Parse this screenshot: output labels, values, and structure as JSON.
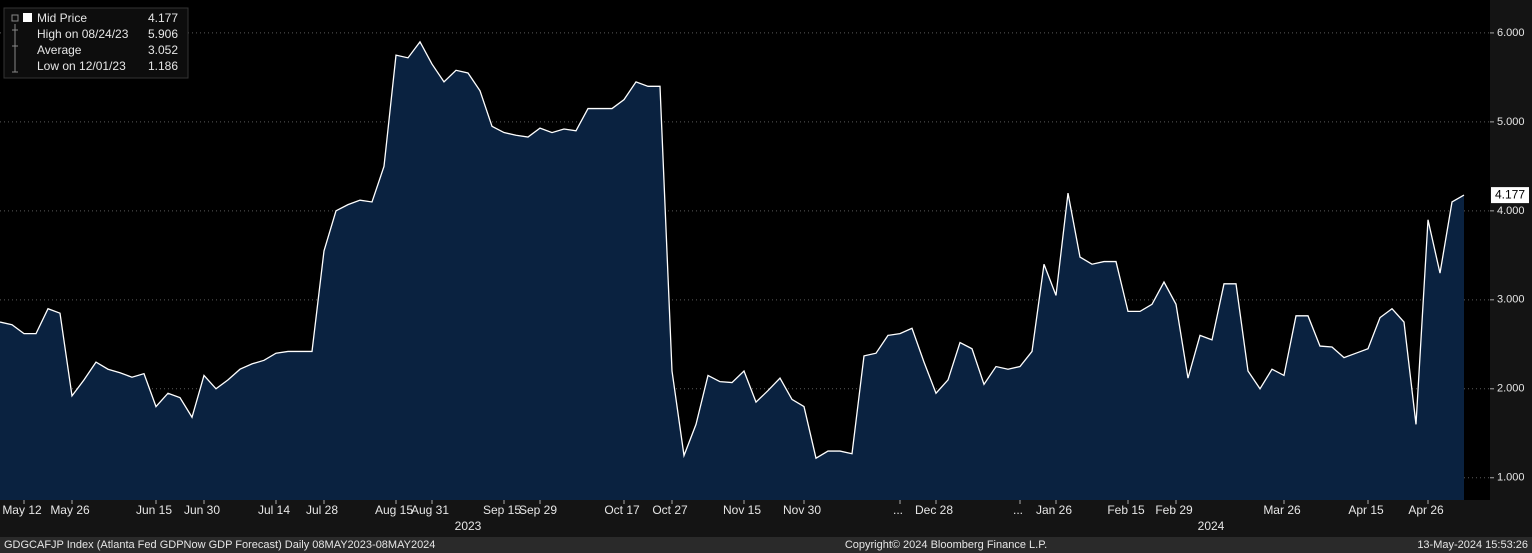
{
  "chart_data": {
    "type": "area",
    "series": [
      {
        "name": "Mid Price",
        "color": "#ffffff",
        "fill": "#0a2240",
        "values": [
          2.75,
          2.72,
          2.62,
          2.62,
          2.9,
          2.85,
          1.92,
          2.1,
          2.3,
          2.22,
          2.18,
          2.13,
          2.17,
          1.8,
          1.95,
          1.9,
          1.68,
          2.15,
          2.0,
          2.1,
          2.22,
          2.28,
          2.32,
          2.4,
          2.42,
          2.42,
          2.42,
          3.55,
          4.0,
          4.07,
          4.12,
          4.1,
          4.5,
          5.75,
          5.72,
          5.9,
          5.65,
          5.45,
          5.58,
          5.55,
          5.35,
          4.95,
          4.88,
          4.85,
          4.83,
          4.93,
          4.88,
          4.92,
          4.9,
          5.15,
          5.15,
          5.15,
          5.25,
          5.45,
          5.4,
          5.4,
          2.2,
          1.25,
          1.6,
          2.15,
          2.08,
          2.07,
          2.2,
          1.85,
          1.98,
          2.12,
          1.88,
          1.8,
          1.22,
          1.3,
          1.3,
          1.27,
          2.37,
          2.4,
          2.6,
          2.62,
          2.68,
          2.3,
          1.95,
          2.1,
          2.52,
          2.45,
          2.05,
          2.25,
          2.22,
          2.25,
          2.42,
          3.4,
          3.05,
          4.2,
          3.48,
          3.4,
          3.43,
          3.43,
          2.87,
          2.87,
          2.95,
          3.2,
          2.95,
          2.12,
          2.6,
          2.55,
          3.18,
          3.18,
          2.2,
          2.0,
          2.22,
          2.15,
          2.82,
          2.82,
          2.48,
          2.47,
          2.35,
          2.4,
          2.45,
          2.8,
          2.9,
          2.75,
          1.6,
          3.9,
          3.3,
          4.1,
          4.177
        ]
      }
    ],
    "categories": [
      null,
      null,
      "May 12",
      null,
      null,
      null,
      "May 26",
      null,
      null,
      null,
      null,
      null,
      null,
      "Jun 15",
      null,
      null,
      null,
      "Jun 30",
      null,
      null,
      null,
      null,
      null,
      "Jul 14",
      null,
      null,
      null,
      "Jul 28",
      null,
      null,
      null,
      null,
      null,
      "Aug 15",
      null,
      null,
      "Aug 31",
      null,
      null,
      null,
      null,
      null,
      "Sep 15",
      null,
      null,
      "Sep 29",
      null,
      null,
      null,
      null,
      null,
      null,
      "Oct 17",
      null,
      null,
      null,
      "Oct 27",
      null,
      null,
      null,
      null,
      null,
      "Nov 15",
      null,
      null,
      null,
      null,
      "Nov 30",
      null,
      null,
      null,
      null,
      null,
      null,
      null,
      "...",
      null,
      null,
      "Dec 28",
      null,
      null,
      null,
      null,
      null,
      null,
      "...",
      null,
      null,
      "Jan 26",
      null,
      null,
      null,
      null,
      null,
      "Feb 15",
      null,
      null,
      null,
      "Feb 29",
      null,
      null,
      null,
      null,
      null,
      null,
      null,
      null,
      "Mar 26",
      null,
      null,
      null,
      null,
      null,
      null,
      "Apr 15",
      null,
      null,
      null,
      null,
      "Apr 26",
      null,
      null,
      null
    ],
    "years": [
      "2023",
      "2024"
    ],
    "ylim": [
      0.75,
      6.37
    ],
    "yticks": [
      {
        "value": 1,
        "label": "1.000"
      },
      {
        "value": 2,
        "label": "2.000"
      },
      {
        "value": 3,
        "label": "3.000"
      },
      {
        "value": 4,
        "label": "4.000"
      },
      {
        "value": 5,
        "label": "5.000"
      },
      {
        "value": 6,
        "label": "6.000"
      }
    ],
    "grid": true,
    "legend": [
      {
        "label": "Mid Price",
        "value": 4.177
      },
      {
        "label": "High on 08/24/23",
        "value": 5.906
      },
      {
        "label": "Average",
        "value": 3.052
      },
      {
        "label": "Low on 12/01/23",
        "value": 1.186
      }
    ],
    "footer": {
      "left": "GDGCAFJP Index (Atlanta Fed GDPNow GDP Forecast)  Daily 08MAY2023-08MAY2024",
      "center": "Copyright© 2024 Bloomberg Finance L.P.",
      "right": "13-May-2024 15:53:26"
    }
  }
}
